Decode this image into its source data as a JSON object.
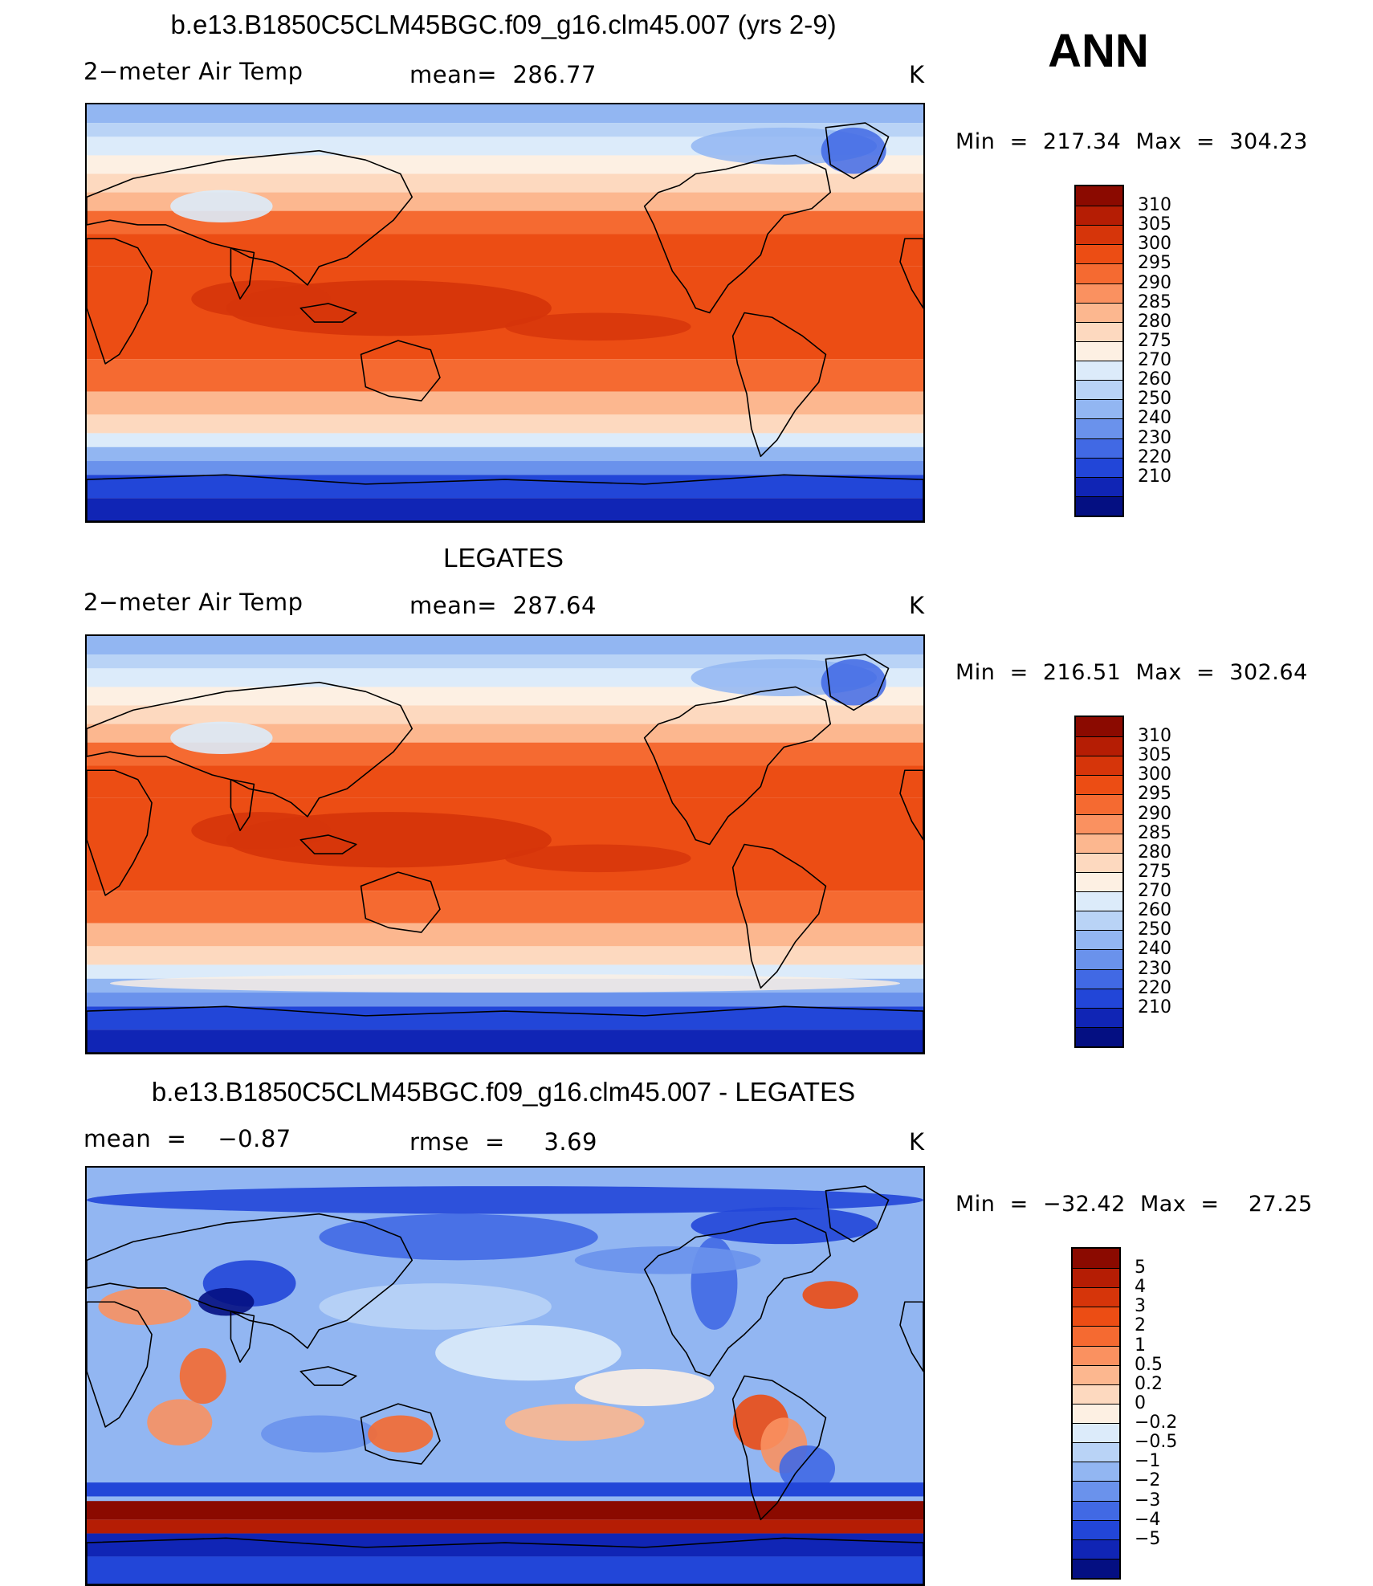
{
  "season_label": "ANN",
  "panels": [
    {
      "title": "b.e13.B1850C5CLM45BGC.f09_g16.clm45.007 (yrs 2-9)",
      "left_label": "2−meter Air Temp",
      "center_label": "mean=  286.77",
      "right_label": "K",
      "minmax": "Min  =  217.34  Max  =  304.23",
      "field": "model"
    },
    {
      "title": "LEGATES",
      "left_label": "2−meter Air Temp",
      "center_label": "mean=  287.64",
      "right_label": "K",
      "minmax": "Min  =  216.51  Max  =  302.64",
      "field": "obs"
    },
    {
      "title": "b.e13.B1850C5CLM45BGC.f09_g16.clm45.007 - LEGATES",
      "left_label": "mean  =    −0.87",
      "center_label": "rmse  =     3.69",
      "right_label": "K",
      "minmax": "Min  =  −32.42  Max  =    27.25",
      "field": "diff"
    }
  ],
  "colorbars": {
    "temperature": {
      "labels": [
        "310",
        "305",
        "300",
        "295",
        "290",
        "285",
        "280",
        "275",
        "270",
        "260",
        "250",
        "240",
        "230",
        "220",
        "210"
      ],
      "colors": [
        "#8b0a00",
        "#b51d04",
        "#d6350a",
        "#ec4d14",
        "#f56a31",
        "#fa9160",
        "#fcb78f",
        "#fdd9bf",
        "#fdf0e3",
        "#dcebfa",
        "#b9d3f6",
        "#92b6f2",
        "#6a92ec",
        "#4169e4",
        "#2246d8",
        "#1025b5",
        "#040f82"
      ]
    },
    "difference": {
      "labels": [
        "5",
        "4",
        "3",
        "2",
        "1",
        "0.5",
        "0.2",
        "0",
        "−0.2",
        "−0.5",
        "−1",
        "−2",
        "−3",
        "−4",
        "−5"
      ],
      "colors": [
        "#8b0a00",
        "#b51d04",
        "#d6350a",
        "#ec4d14",
        "#f56a31",
        "#fa9160",
        "#fcb78f",
        "#fdd9bf",
        "#fdf0e3",
        "#dcebfa",
        "#b9d3f6",
        "#92b6f2",
        "#6a92ec",
        "#4169e4",
        "#2246d8",
        "#1025b5",
        "#040f82"
      ]
    }
  }
}
